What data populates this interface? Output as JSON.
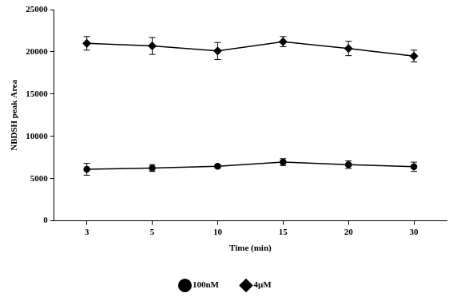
{
  "chart_data": {
    "type": "line",
    "x_label": "Time (min)",
    "y_label": "NBDSH peak Area",
    "categories": [
      "3",
      "5",
      "10",
      "15",
      "20",
      "30"
    ],
    "series": [
      {
        "name": "100nM",
        "color": "#000000",
        "marker": "circle",
        "values": [
          6100,
          6250,
          6450,
          6950,
          6650,
          6400
        ],
        "errors": [
          700,
          400,
          200,
          400,
          450,
          550
        ]
      },
      {
        "name": "4μM",
        "color": "#000000",
        "marker": "diamond",
        "values": [
          21000,
          20700,
          20100,
          21200,
          20400,
          19500
        ],
        "errors": [
          800,
          1000,
          1000,
          600,
          850,
          700
        ]
      }
    ],
    "ylim": [
      0,
      25000
    ],
    "yticks": [
      0,
      5000,
      10000,
      15000,
      20000,
      25000
    ],
    "grid": false,
    "legend": "bottom"
  }
}
